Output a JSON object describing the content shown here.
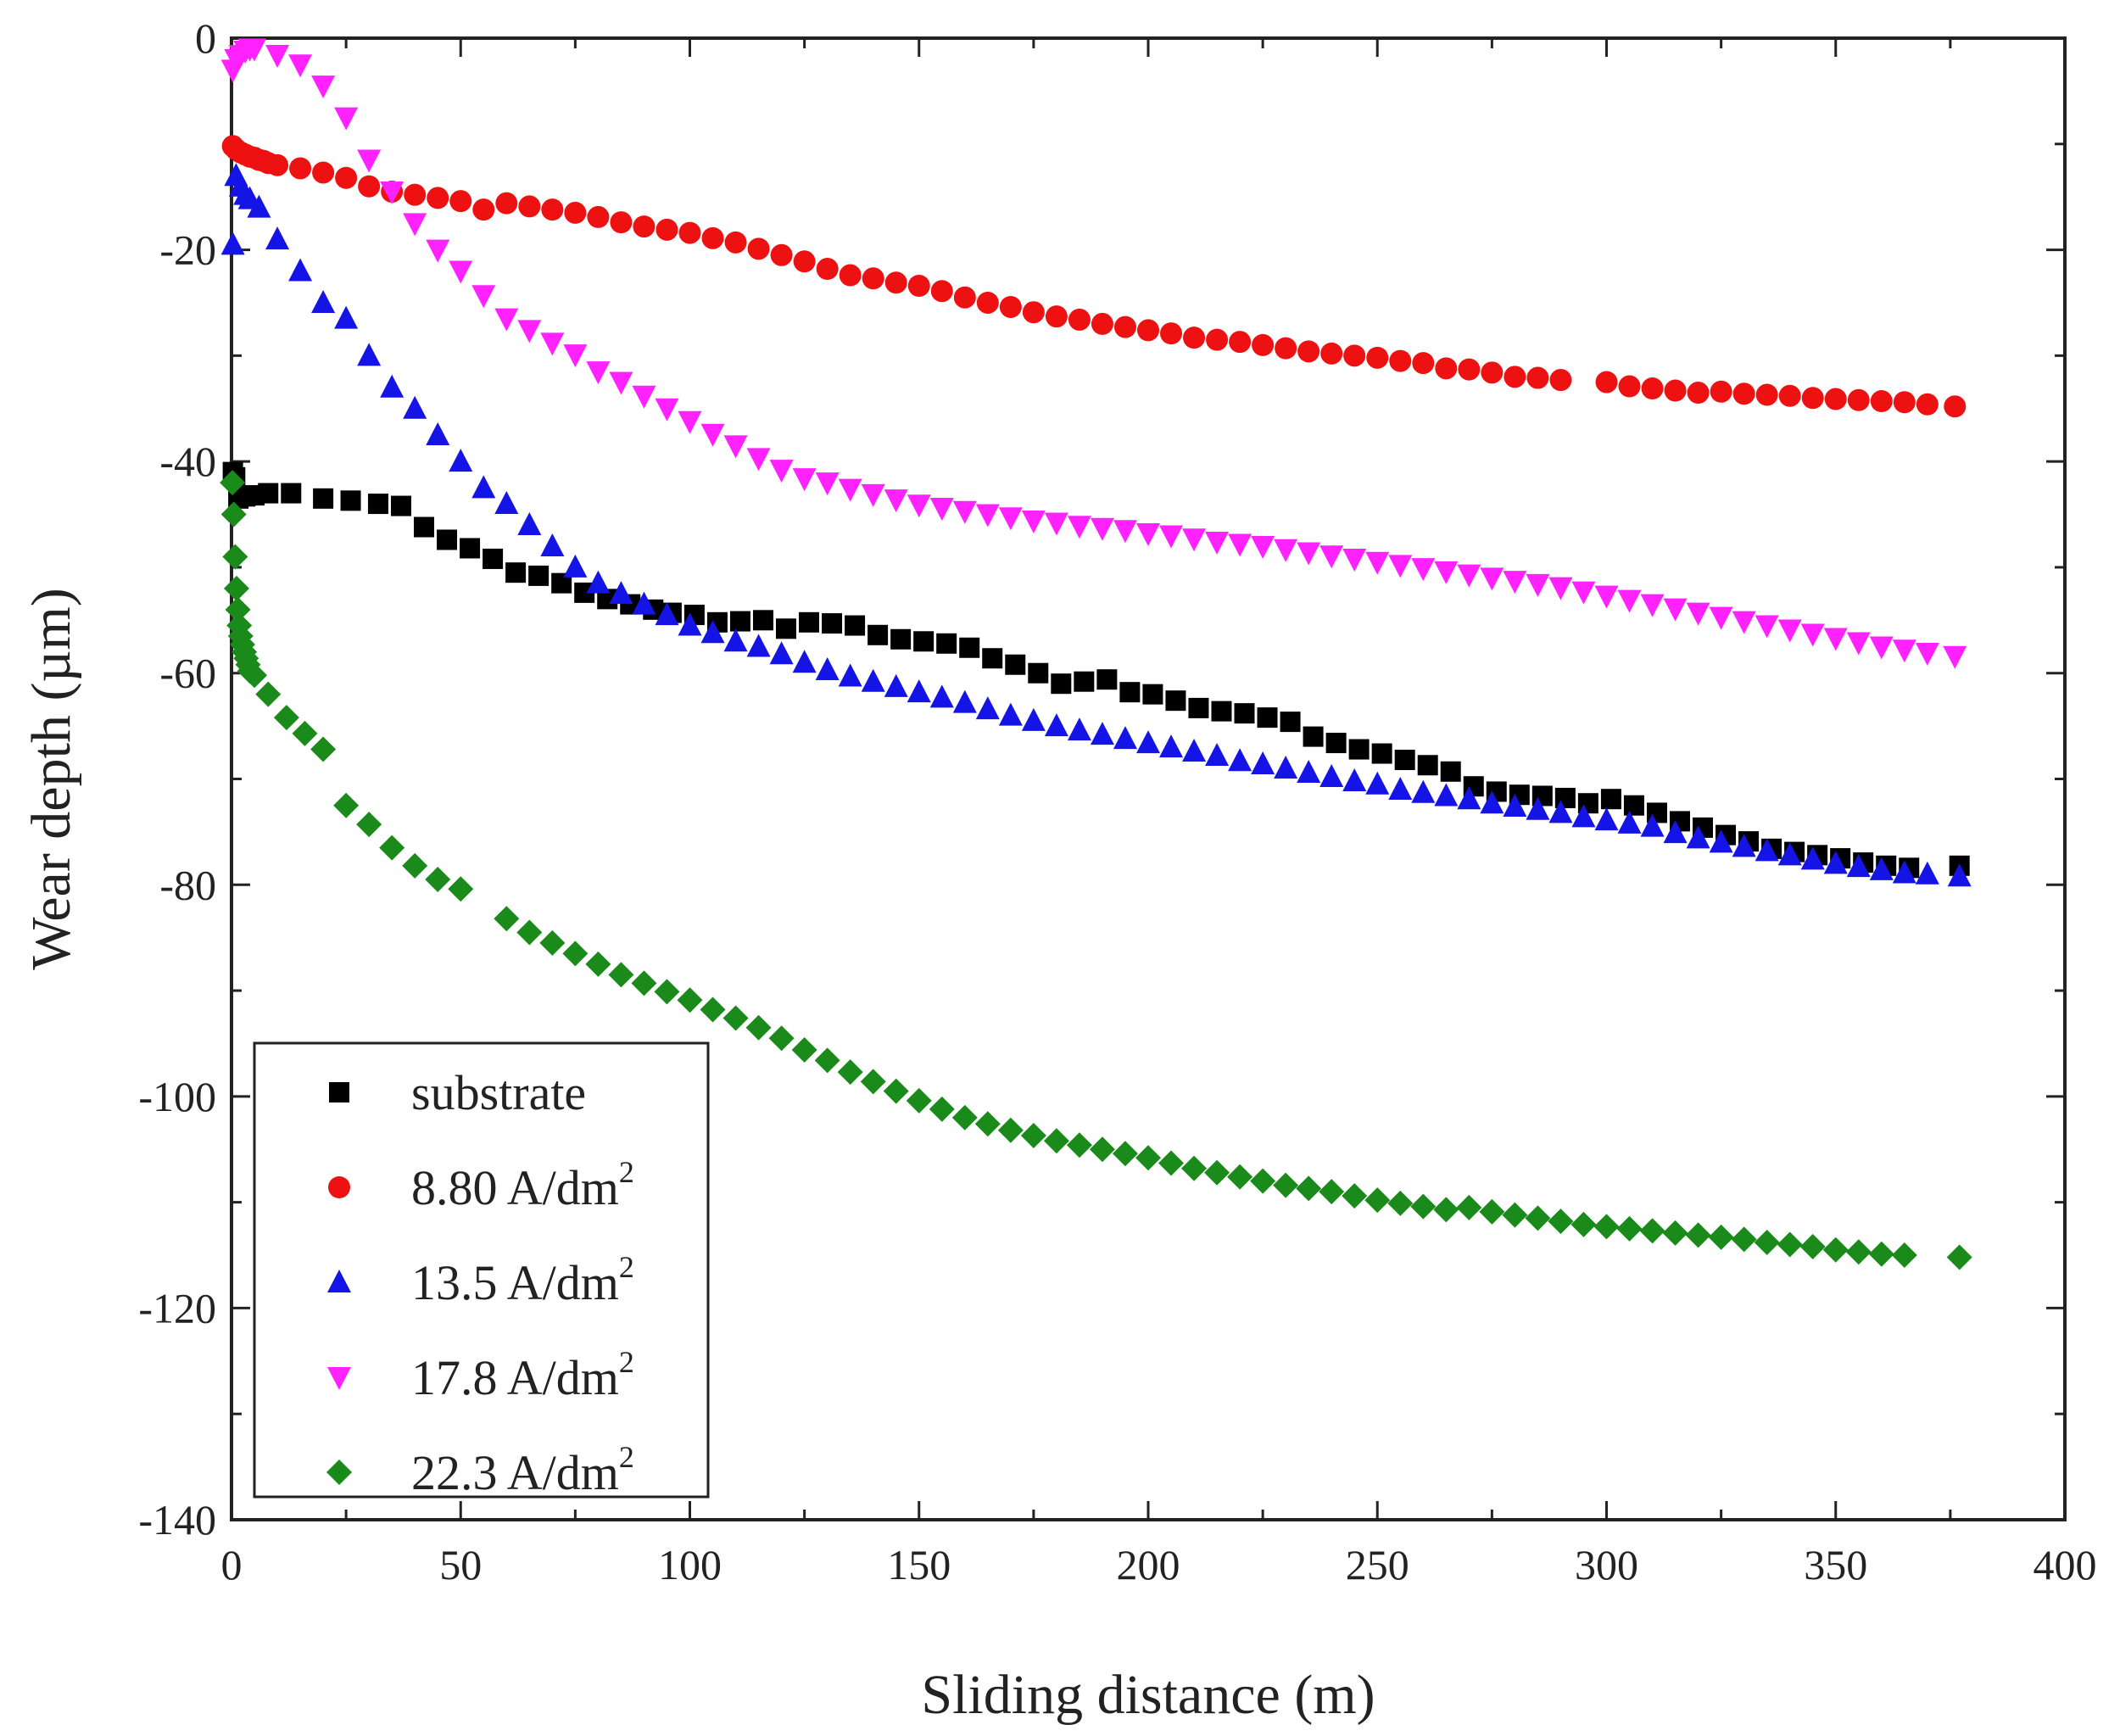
{
  "chart_data": {
    "type": "scatter",
    "title": "",
    "xlabel": "Sliding distance (m)",
    "ylabel": "Wear depth (µm)",
    "xlim": [
      0,
      400
    ],
    "ylim": [
      -140,
      0
    ],
    "xticks": [
      0,
      50,
      100,
      150,
      200,
      250,
      300,
      350,
      400
    ],
    "yticks": [
      0,
      -20,
      -40,
      -60,
      -80,
      -100,
      -120,
      -140
    ],
    "grid": false,
    "legend_position": "bottom-left",
    "series": [
      {
        "name": "substrate",
        "label_main": "substrate",
        "label_sup": "",
        "marker": "square",
        "color": "#000000",
        "x": [
          0.3,
          0.8,
          1.5,
          3,
          5,
          8,
          13,
          20,
          26,
          32,
          37,
          42,
          47,
          52,
          57,
          62,
          67,
          72,
          77,
          82,
          87,
          92,
          96,
          101,
          106,
          111,
          116,
          121,
          126,
          131,
          136,
          141,
          146,
          151,
          156,
          161,
          166,
          171,
          176,
          181,
          186,
          191,
          196,
          201,
          206,
          211,
          216,
          221,
          226,
          231,
          236,
          241,
          246,
          251,
          256,
          261,
          266,
          271,
          276,
          281,
          286,
          291,
          296,
          301,
          306,
          311,
          316,
          321,
          326,
          331,
          336,
          341,
          346,
          351,
          356,
          361,
          366,
          377
        ],
        "y": [
          -41,
          -41.5,
          -43.5,
          -43.3,
          -43.2,
          -43,
          -43,
          -43.5,
          -43.7,
          -44,
          -44.2,
          -46.2,
          -47.4,
          -48.2,
          -49.2,
          -50.5,
          -50.8,
          -51.5,
          -52.4,
          -53,
          -53.5,
          -54,
          -54.3,
          -54.5,
          -55.2,
          -55.1,
          -55,
          -55.8,
          -55.2,
          -55.3,
          -55.5,
          -56.4,
          -56.8,
          -57,
          -57.2,
          -57.6,
          -58.6,
          -59.2,
          -60,
          -61,
          -60.8,
          -60.6,
          -61.8,
          -62,
          -62.6,
          -63.3,
          -63.6,
          -63.8,
          -64.2,
          -64.6,
          -66,
          -66.6,
          -67.2,
          -67.6,
          -68.2,
          -68.7,
          -69.3,
          -70.7,
          -71.2,
          -71.5,
          -71.6,
          -71.8,
          -72.3,
          -71.9,
          -72.5,
          -73.2,
          -74,
          -74.6,
          -75.3,
          -75.9,
          -76.6,
          -76.9,
          -77.2,
          -77.5,
          -77.9,
          -78.2,
          -78.4,
          -78.2
        ]
      },
      {
        "name": "8.80 A/dm2",
        "label_main": "8.80 A/dm",
        "label_sup": "2",
        "marker": "circle",
        "color": "#ee1111",
        "x": [
          0.3,
          1,
          2,
          3,
          4,
          5,
          6,
          7,
          8,
          10,
          15,
          20,
          25,
          30,
          35,
          40,
          45,
          50,
          55,
          60,
          65,
          70,
          75,
          80,
          85,
          90,
          95,
          100,
          105,
          110,
          115,
          120,
          125,
          130,
          135,
          140,
          145,
          150,
          155,
          160,
          165,
          170,
          175,
          180,
          185,
          190,
          195,
          200,
          205,
          210,
          215,
          220,
          225,
          230,
          235,
          240,
          245,
          250,
          255,
          260,
          265,
          270,
          275,
          280,
          285,
          290,
          300,
          305,
          310,
          315,
          320,
          325,
          330,
          335,
          340,
          345,
          350,
          355,
          360,
          365,
          370,
          376
        ],
        "y": [
          -10.2,
          -10.5,
          -10.8,
          -11,
          -11.2,
          -11.3,
          -11.5,
          -11.6,
          -11.8,
          -12,
          -12.3,
          -12.7,
          -13.2,
          -14,
          -14.5,
          -14.8,
          -15.1,
          -15.4,
          -16.2,
          -15.6,
          -15.9,
          -16.2,
          -16.5,
          -16.9,
          -17.4,
          -17.8,
          -18.1,
          -18.4,
          -18.9,
          -19.3,
          -19.9,
          -20.5,
          -21.1,
          -21.8,
          -22.4,
          -22.7,
          -23.1,
          -23.4,
          -23.9,
          -24.5,
          -25,
          -25.4,
          -25.9,
          -26.3,
          -26.6,
          -27,
          -27.3,
          -27.6,
          -27.9,
          -28.3,
          -28.5,
          -28.7,
          -29,
          -29.3,
          -29.6,
          -29.8,
          -30,
          -30.2,
          -30.5,
          -30.7,
          -31.2,
          -31.3,
          -31.6,
          -32,
          -32.1,
          -32.3,
          -32.5,
          -32.9,
          -33.1,
          -33.3,
          -33.5,
          -33.4,
          -33.6,
          -33.7,
          -33.8,
          -34,
          -34.1,
          -34.2,
          -34.3,
          -34.4,
          -34.6,
          -34.8
        ]
      },
      {
        "name": "13.5 A/dm2",
        "label_main": "13.5 A/dm",
        "label_sup": "2",
        "marker": "triangle-up",
        "color": "#1414e6",
        "x": [
          0.3,
          1,
          2,
          3,
          4,
          6,
          10,
          15,
          20,
          25,
          30,
          35,
          40,
          45,
          50,
          55,
          60,
          65,
          70,
          75,
          80,
          85,
          90,
          95,
          100,
          105,
          110,
          115,
          120,
          125,
          130,
          135,
          140,
          145,
          150,
          155,
          160,
          165,
          170,
          175,
          180,
          185,
          190,
          195,
          200,
          205,
          210,
          215,
          220,
          225,
          230,
          235,
          240,
          245,
          250,
          255,
          260,
          265,
          270,
          275,
          280,
          285,
          290,
          295,
          300,
          305,
          310,
          315,
          320,
          325,
          330,
          335,
          340,
          345,
          350,
          355,
          360,
          365,
          370,
          377
        ],
        "y": [
          -19.5,
          -13,
          -14,
          -14.8,
          -15.2,
          -16,
          -19,
          -22,
          -25,
          -26.5,
          -30,
          -33,
          -35,
          -37.5,
          -40,
          -42.5,
          -44,
          -46,
          -48,
          -50,
          -51.5,
          -52.5,
          -53.5,
          -54.5,
          -55.5,
          -56.2,
          -57,
          -57.5,
          -58.2,
          -59,
          -59.7,
          -60.3,
          -60.8,
          -61.3,
          -61.8,
          -62.3,
          -62.8,
          -63.4,
          -64,
          -64.5,
          -65,
          -65.4,
          -65.8,
          -66.2,
          -66.6,
          -67,
          -67.4,
          -67.8,
          -68.3,
          -68.6,
          -69,
          -69.4,
          -69.8,
          -70.2,
          -70.5,
          -71,
          -71.3,
          -71.6,
          -71.9,
          -72.3,
          -72.6,
          -72.9,
          -73.2,
          -73.6,
          -73.9,
          -74.2,
          -74.5,
          -75.1,
          -75.6,
          -76,
          -76.4,
          -76.8,
          -77.2,
          -77.6,
          -78,
          -78.3,
          -78.6,
          -78.9,
          -79,
          -79.2
        ]
      },
      {
        "name": "17.8 A/dm2",
        "label_main": "17.8 A/dm",
        "label_sup": "2",
        "marker": "triangle-down",
        "color": "#ff22ff",
        "x": [
          0.3,
          1,
          2,
          3,
          4,
          5,
          10,
          15,
          20,
          25,
          30,
          35,
          40,
          45,
          50,
          55,
          60,
          65,
          70,
          75,
          80,
          85,
          90,
          95,
          100,
          105,
          110,
          115,
          120,
          125,
          130,
          135,
          140,
          145,
          150,
          155,
          160,
          165,
          170,
          175,
          180,
          185,
          190,
          195,
          200,
          205,
          210,
          215,
          220,
          225,
          230,
          235,
          240,
          245,
          250,
          255,
          260,
          265,
          270,
          275,
          280,
          285,
          290,
          295,
          300,
          305,
          310,
          315,
          320,
          325,
          330,
          335,
          340,
          345,
          350,
          355,
          360,
          365,
          370,
          376
        ],
        "y": [
          -3,
          -2,
          -1.6,
          -1.2,
          -1,
          -1,
          -1.6,
          -2.5,
          -4.5,
          -7.5,
          -11.5,
          -14.5,
          -17.5,
          -20,
          -22,
          -24.3,
          -26.5,
          -27.6,
          -28.8,
          -29.9,
          -31.5,
          -32.5,
          -33.8,
          -35,
          -36.2,
          -37.4,
          -38.5,
          -39.7,
          -40.8,
          -41.6,
          -42,
          -42.6,
          -43.1,
          -43.6,
          -44.1,
          -44.4,
          -44.7,
          -45,
          -45.3,
          -45.6,
          -45.8,
          -46.1,
          -46.3,
          -46.5,
          -46.8,
          -47,
          -47.3,
          -47.6,
          -47.8,
          -48,
          -48.3,
          -48.6,
          -48.9,
          -49.2,
          -49.5,
          -49.8,
          -50.1,
          -50.4,
          -50.7,
          -51,
          -51.3,
          -51.6,
          -51.9,
          -52.3,
          -52.7,
          -53.1,
          -53.5,
          -53.9,
          -54.3,
          -54.7,
          -55.1,
          -55.5,
          -55.9,
          -56.3,
          -56.7,
          -57.1,
          -57.5,
          -57.8,
          -58.1,
          -58.4
        ]
      },
      {
        "name": "22.3 A/dm2",
        "label_main": "22.3 A/dm",
        "label_sup": "2",
        "marker": "diamond",
        "color": "#1a8a1a",
        "x": [
          0.2,
          0.5,
          0.8,
          1.1,
          1.4,
          1.7,
          2,
          2.4,
          2.8,
          3.2,
          3.6,
          4,
          5,
          8,
          12,
          16,
          20,
          25,
          30,
          35,
          40,
          45,
          50,
          60,
          65,
          70,
          75,
          80,
          85,
          90,
          95,
          100,
          105,
          110,
          115,
          120,
          125,
          130,
          135,
          140,
          145,
          150,
          155,
          160,
          165,
          170,
          175,
          180,
          185,
          190,
          195,
          200,
          205,
          210,
          215,
          220,
          225,
          230,
          235,
          240,
          245,
          250,
          255,
          260,
          265,
          270,
          275,
          280,
          285,
          290,
          295,
          300,
          305,
          310,
          315,
          320,
          325,
          330,
          335,
          340,
          345,
          350,
          355,
          360,
          365,
          377
        ],
        "y": [
          -42,
          -45,
          -49,
          -52,
          -54,
          -55.5,
          -56.5,
          -57.3,
          -58,
          -58.6,
          -59.2,
          -59.8,
          -60.2,
          -62,
          -64.2,
          -65.7,
          -67.2,
          -72.5,
          -74.3,
          -76.5,
          -78.2,
          -79.5,
          -80.4,
          -83.2,
          -84.5,
          -85.5,
          -86.5,
          -87.5,
          -88.5,
          -89.3,
          -90.1,
          -90.9,
          -91.8,
          -92.6,
          -93.5,
          -94.5,
          -95.6,
          -96.6,
          -97.7,
          -98.6,
          -99.5,
          -100.4,
          -101.2,
          -102,
          -102.6,
          -103.2,
          -103.7,
          -104.2,
          -104.6,
          -105,
          -105.4,
          -105.8,
          -106.3,
          -106.8,
          -107.2,
          -107.6,
          -108,
          -108.4,
          -108.7,
          -109,
          -109.4,
          -109.8,
          -110.1,
          -110.4,
          -110.7,
          -110.5,
          -110.9,
          -111.2,
          -111.5,
          -111.8,
          -112.1,
          -112.3,
          -112.5,
          -112.7,
          -112.9,
          -113.1,
          -113.3,
          -113.5,
          -113.8,
          -114,
          -114.2,
          -114.5,
          -114.7,
          -114.9,
          -115,
          -115.2
        ]
      }
    ]
  }
}
